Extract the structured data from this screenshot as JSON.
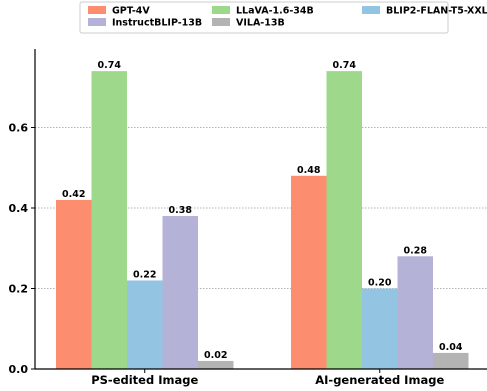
{
  "chart_data": {
    "type": "bar",
    "categories": [
      "PS-edited Image",
      "AI-generated Image"
    ],
    "series": [
      {
        "name": "GPT-4V",
        "values": [
          0.42,
          0.48
        ],
        "color": "#fc8d6e"
      },
      {
        "name": "LLaVA-1.6-34B",
        "values": [
          0.74,
          0.74
        ],
        "color": "#9dd88b"
      },
      {
        "name": "BLIP2-FLAN-T5-XXL",
        "values": [
          0.22,
          0.2
        ],
        "color": "#93c5e3"
      },
      {
        "name": "InstructBLIP-13B",
        "values": [
          0.38,
          0.28
        ],
        "color": "#b5b2d8"
      },
      {
        "name": "VILA-13B",
        "values": [
          0.02,
          0.04
        ],
        "color": "#b3b3b3"
      }
    ],
    "value_labels": [
      [
        "0.42",
        "0.74",
        "0.22",
        "0.38",
        "0.02"
      ],
      [
        "0.48",
        "0.74",
        "0.20",
        "0.28",
        "0.04"
      ]
    ],
    "y_ticks": [
      0.0,
      0.2,
      0.4,
      0.6
    ],
    "y_tick_labels": [
      "0.0",
      "0.2",
      "0.4",
      "0.6"
    ],
    "ylim": [
      0,
      0.79
    ],
    "grid": "horizontal dotted",
    "legend_position": "top-center",
    "legend_columns": 3,
    "title": "",
    "xlabel": "",
    "ylabel": ""
  }
}
